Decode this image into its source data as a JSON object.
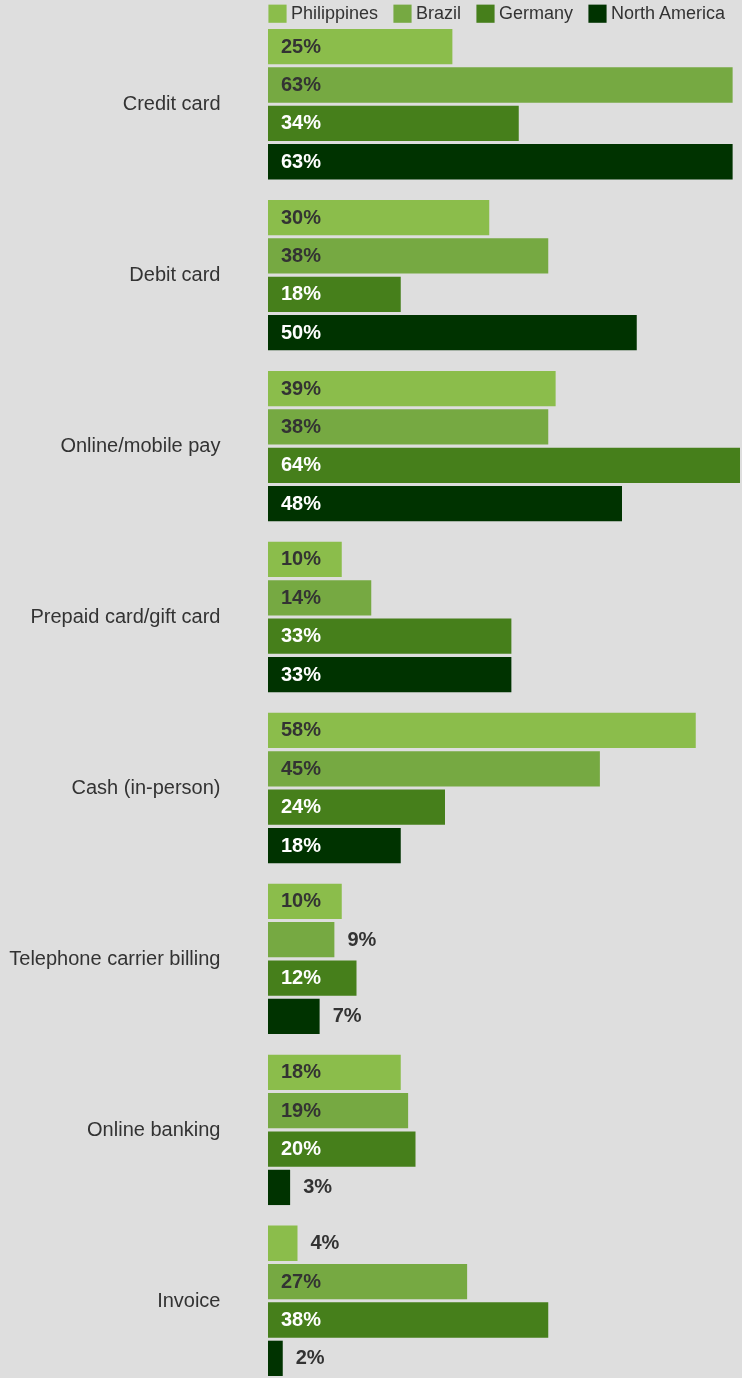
{
  "chart_data": {
    "type": "bar",
    "orientation": "horizontal",
    "legend": "top",
    "categories": [
      "Credit card",
      "Debit card",
      "Online/mobile pay",
      "Prepaid card/gift card",
      "Cash (in-person)",
      "Telephone carrier billing",
      "Online banking",
      "Invoice"
    ],
    "series": [
      {
        "name": "Philippines",
        "color": "#8bbd4b",
        "values": [
          25,
          30,
          39,
          10,
          58,
          10,
          18,
          4
        ],
        "value_labels": [
          "25%",
          "30%",
          "39%",
          "10%",
          "58%",
          "10%",
          "18%",
          "4%"
        ]
      },
      {
        "name": "Brazil",
        "color": "#76a942",
        "values": [
          63,
          38,
          38,
          14,
          45,
          9,
          19,
          27
        ],
        "value_labels": [
          "63%",
          "38%",
          "38%",
          "14%",
          "45%",
          "9%",
          "19%",
          "27%"
        ]
      },
      {
        "name": "Germany",
        "color": "#467f1b",
        "values": [
          34,
          18,
          64,
          33,
          24,
          12,
          20,
          38
        ],
        "value_labels": [
          "34%",
          "18%",
          "64%",
          "33%",
          "24%",
          "12%",
          "20%",
          "38%"
        ]
      },
      {
        "name": "North America",
        "color": "#003300",
        "values": [
          63,
          50,
          48,
          33,
          18,
          7,
          3,
          2
        ],
        "value_labels": [
          "63%",
          "50%",
          "48%",
          "33%",
          "18%",
          "7%",
          "3%",
          "2%"
        ]
      }
    ]
  }
}
